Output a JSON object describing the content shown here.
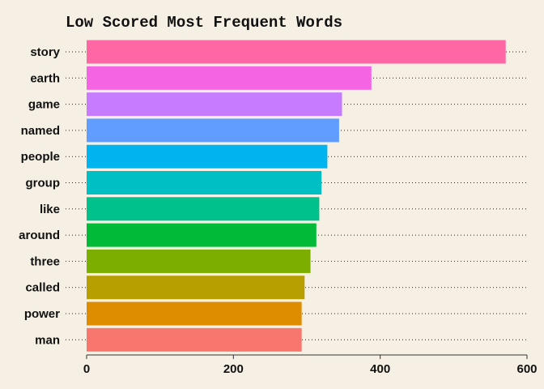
{
  "chart_data": {
    "type": "bar",
    "orientation": "horizontal",
    "title": "Low Scored Most Frequent Words",
    "xlabel": "",
    "ylabel": "",
    "categories": [
      "story",
      "earth",
      "game",
      "named",
      "people",
      "group",
      "like",
      "around",
      "three",
      "called",
      "power",
      "man"
    ],
    "values": [
      571,
      388,
      348,
      344,
      328,
      320,
      317,
      313,
      305,
      297,
      293,
      293
    ],
    "colors": [
      "#FF67A4",
      "#F564E3",
      "#C77CFF",
      "#619CFF",
      "#00B4F0",
      "#00BFC4",
      "#00C08B",
      "#00BA38",
      "#7CAE00",
      "#B79F00",
      "#DE8C00",
      "#F8766D"
    ],
    "xlim": [
      0,
      600
    ],
    "xticks": [
      0,
      200,
      400,
      600
    ],
    "grid": "dotted horizontal guide lines",
    "legend": "none",
    "background": "#F5F0E3"
  }
}
